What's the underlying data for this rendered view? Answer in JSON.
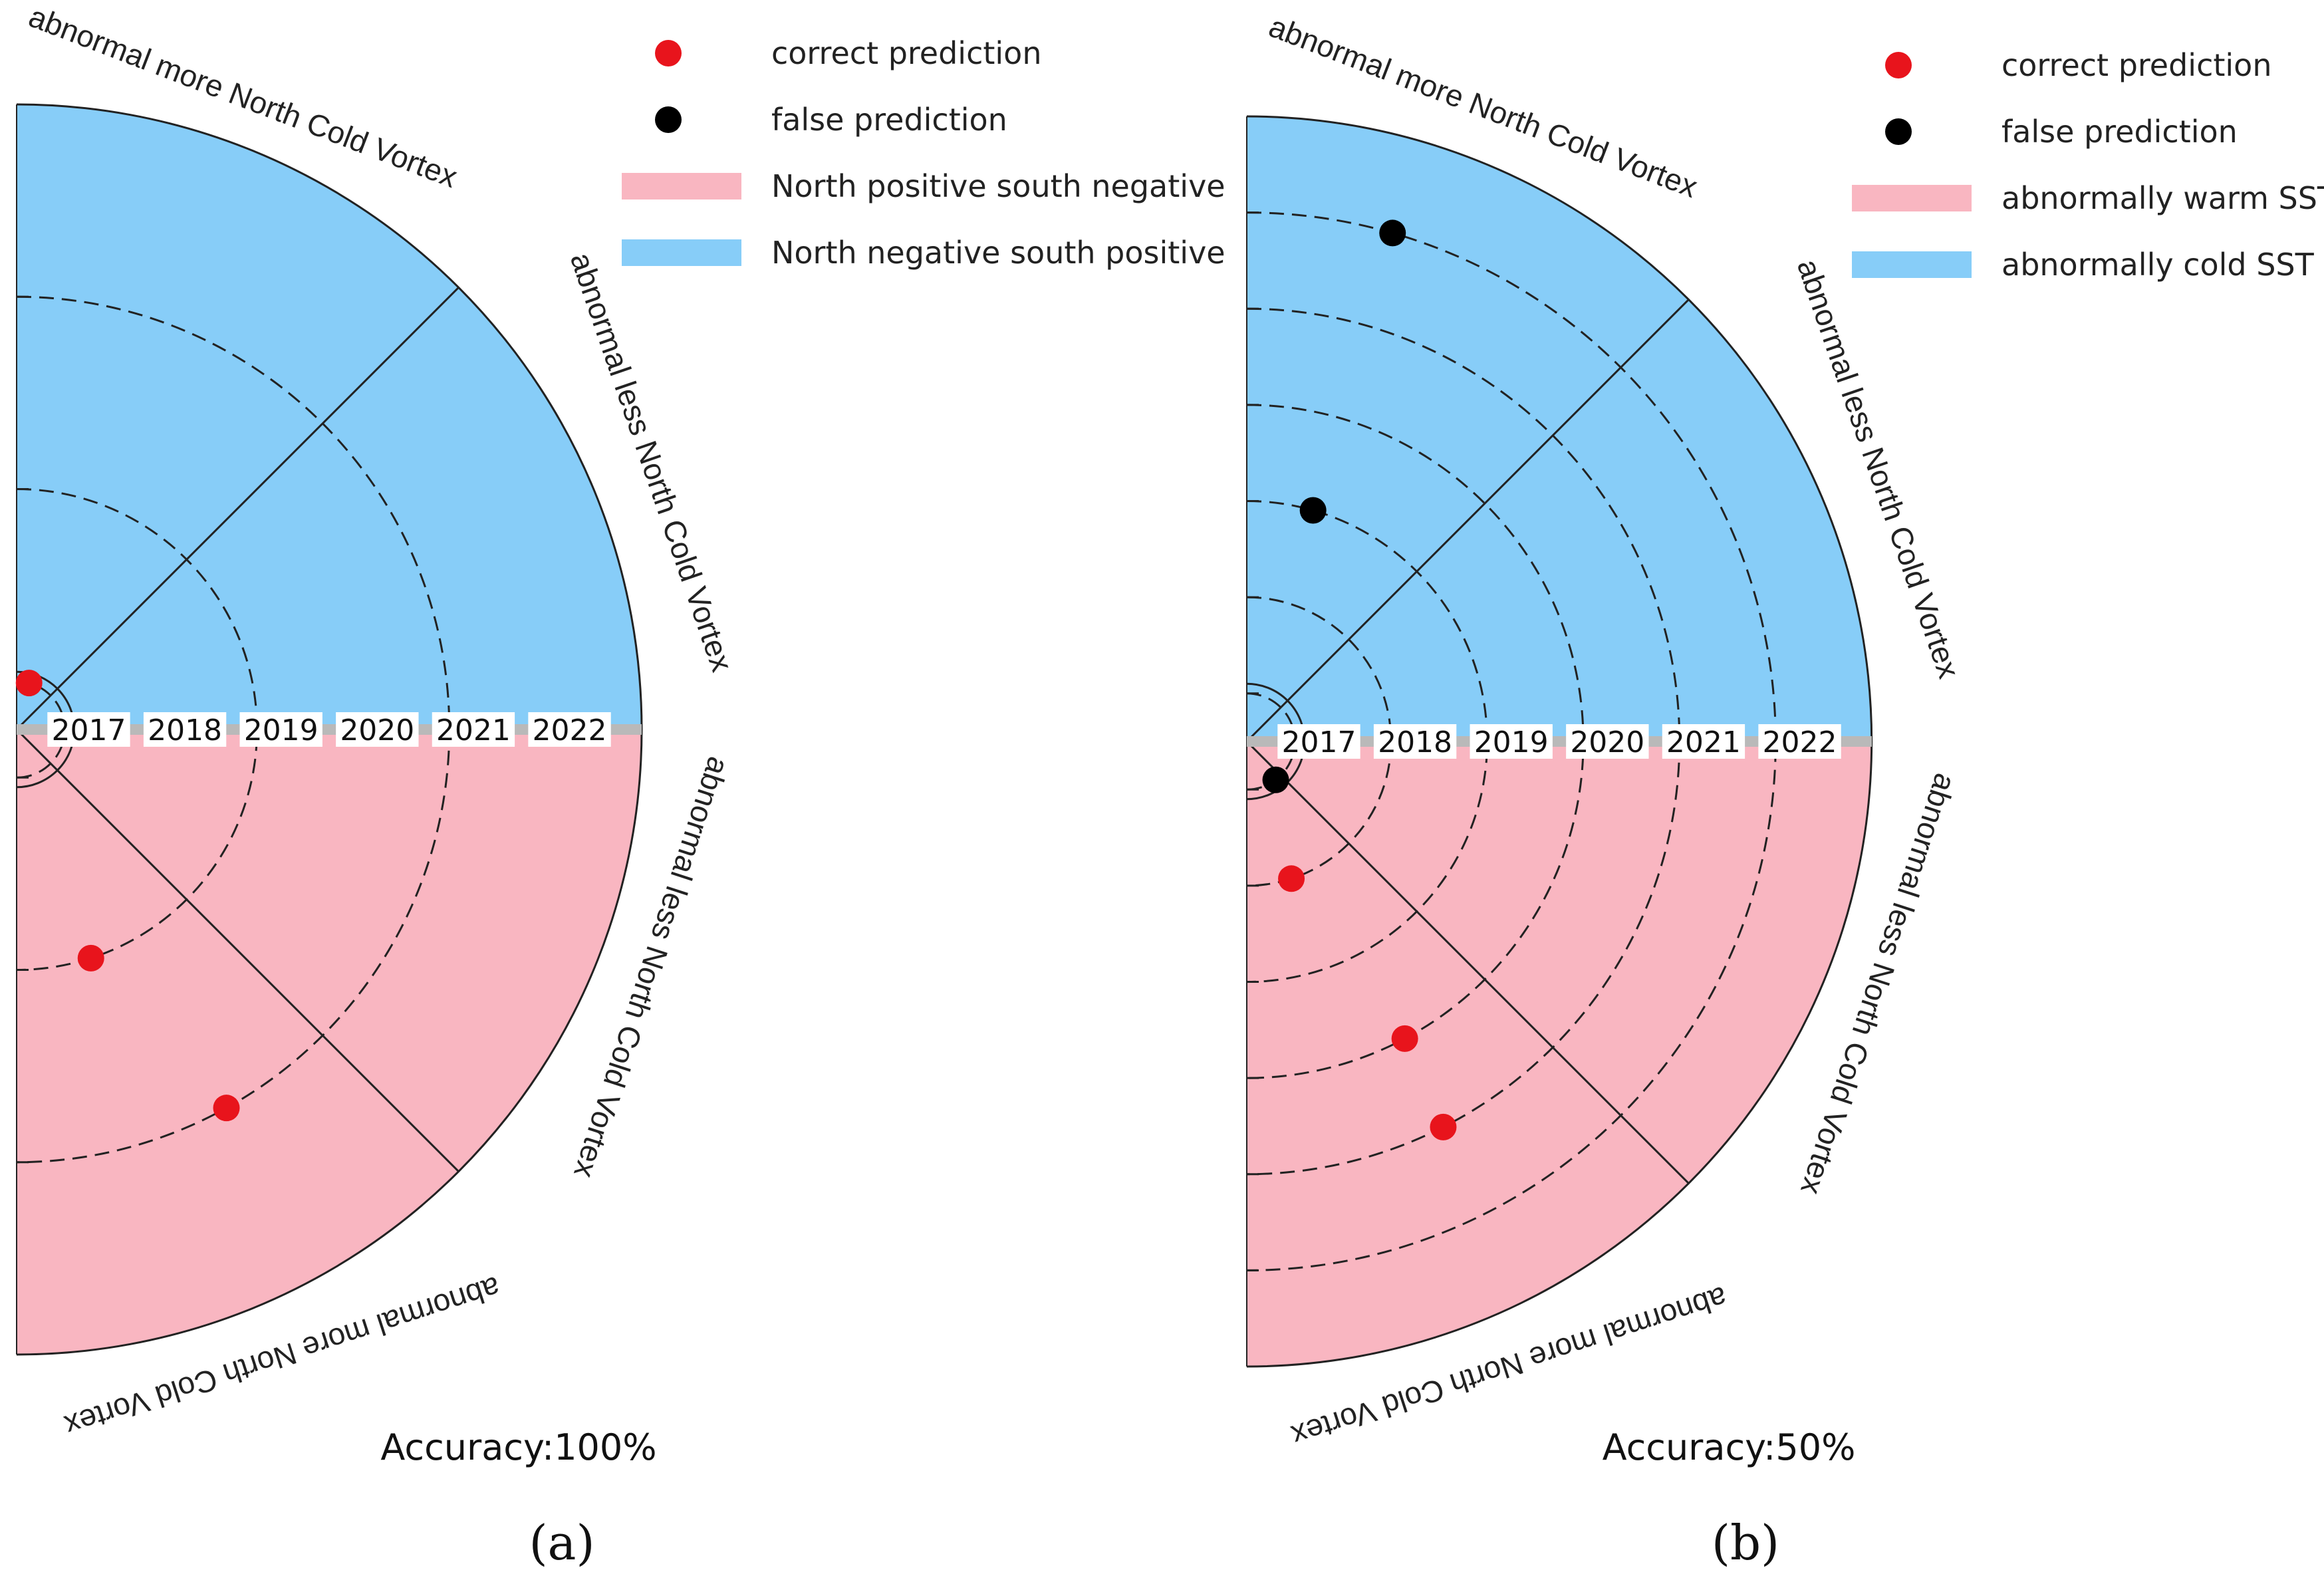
{
  "chart_data": [
    {
      "type": "polar-scatter",
      "panel_label": "(a)",
      "accuracy_text": "Accuracy:100%",
      "years": [
        "2017",
        "2018",
        "2019",
        "2020",
        "2021",
        "2022"
      ],
      "quadrant_labels": [
        "abnormal more North Cold Vortex",
        "abnormal less North Cold Vortex",
        "abnormal less North Cold Vortex",
        "abnormal more North Cold Vortex"
      ],
      "legend": [
        {
          "label": "correct prediction",
          "kind": "dot",
          "color": "#e8141c"
        },
        {
          "label": "false prediction",
          "kind": "dot",
          "color": "#000000"
        },
        {
          "label": "North positive south negative",
          "kind": "band",
          "color": "#f9b6c1"
        },
        {
          "label": "North negative south positive",
          "kind": "band",
          "color": "#87cdf8"
        }
      ],
      "rings": [
        "2017",
        "2019",
        "2021"
      ],
      "points": [
        {
          "year": "2017",
          "angle_deg": 75,
          "result": "correct"
        },
        {
          "year": "2019",
          "angle_deg": -72,
          "result": "correct"
        },
        {
          "year": "2021",
          "angle_deg": -61,
          "result": "correct"
        }
      ]
    },
    {
      "type": "polar-scatter",
      "panel_label": "(b)",
      "accuracy_text": "Accuracy:50%",
      "years": [
        "2017",
        "2018",
        "2019",
        "2020",
        "2021",
        "2022"
      ],
      "quadrant_labels": [
        "abnormal more North Cold Vortex",
        "abnormal less North Cold Vortex",
        "abnormal less North Cold Vortex",
        "abnormal more North Cold Vortex"
      ],
      "legend": [
        {
          "label": "correct prediction",
          "kind": "dot",
          "color": "#e8141c"
        },
        {
          "label": "false prediction",
          "kind": "dot",
          "color": "#000000"
        },
        {
          "label": "abnormally warm SST",
          "kind": "band",
          "color": "#f9b6c1"
        },
        {
          "label": "abnormally cold SST",
          "kind": "band",
          "color": "#87cdf8"
        }
      ],
      "rings": [
        "2017",
        "2018",
        "2019",
        "2020",
        "2021",
        "2022"
      ],
      "points": [
        {
          "year": "2022",
          "angle_deg": 74,
          "result": "false"
        },
        {
          "year": "2019",
          "angle_deg": 74,
          "result": "false"
        },
        {
          "year": "2017",
          "angle_deg": -53,
          "result": "false"
        },
        {
          "year": "2018",
          "angle_deg": -72,
          "result": "correct"
        },
        {
          "year": "2020",
          "angle_deg": -62,
          "result": "correct"
        },
        {
          "year": "2021",
          "angle_deg": -63,
          "result": "correct"
        }
      ]
    }
  ]
}
